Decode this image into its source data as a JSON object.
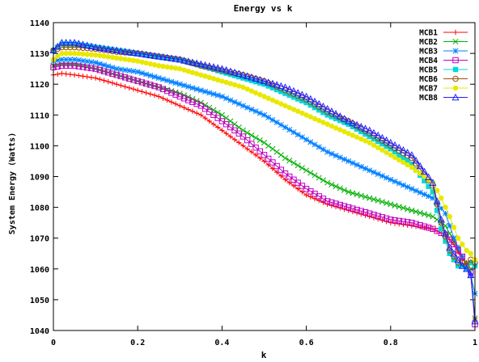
{
  "chart_data": {
    "type": "line",
    "title": "Energy vs k",
    "xlabel": "k",
    "ylabel": "System Energy (Watts)",
    "xlim": [
      0,
      1
    ],
    "ylim": [
      1040,
      1140
    ],
    "x_ticks": [
      "0",
      "0.2",
      "0.4",
      "0.6",
      "0.8",
      "1"
    ],
    "y_ticks": [
      "1040",
      "1050",
      "1060",
      "1070",
      "1080",
      "1090",
      "1100",
      "1110",
      "1120",
      "1130",
      "1140"
    ],
    "grid": false,
    "legend_position": "top-right",
    "series": [
      {
        "name": "MCB1",
        "color": "#ff0000",
        "marker": "plus",
        "x": [
          0,
          0.02,
          0.05,
          0.1,
          0.15,
          0.2,
          0.25,
          0.3,
          0.35,
          0.4,
          0.45,
          0.5,
          0.55,
          0.6,
          0.65,
          0.7,
          0.75,
          0.8,
          0.85,
          0.9,
          0.93,
          0.95,
          0.97,
          0.98,
          0.99,
          1.0
        ],
        "y": [
          1123,
          1123.5,
          1123,
          1122,
          1120,
          1118,
          1116,
          1113,
          1110,
          1105,
          1100,
          1095,
          1089,
          1084,
          1081,
          1079,
          1077,
          1075,
          1074,
          1073,
          1071,
          1068,
          1063,
          1062,
          1058,
          1044
        ]
      },
      {
        "name": "MCB2",
        "color": "#00b000",
        "marker": "cross",
        "x": [
          0,
          0.02,
          0.05,
          0.1,
          0.15,
          0.2,
          0.25,
          0.3,
          0.35,
          0.4,
          0.45,
          0.5,
          0.55,
          0.6,
          0.65,
          0.7,
          0.75,
          0.8,
          0.85,
          0.9,
          0.93,
          0.95,
          0.97,
          0.98,
          0.99,
          1.0
        ],
        "y": [
          1126,
          1126.5,
          1126.5,
          1125,
          1123,
          1121,
          1119,
          1117,
          1114,
          1110,
          1105,
          1101,
          1096,
          1092,
          1088,
          1085,
          1083,
          1081,
          1079,
          1077,
          1074,
          1069,
          1064,
          1062,
          1060,
          1044
        ]
      },
      {
        "name": "MCB3",
        "color": "#0080ff",
        "marker": "star",
        "x": [
          0,
          0.02,
          0.05,
          0.1,
          0.15,
          0.2,
          0.25,
          0.3,
          0.35,
          0.4,
          0.45,
          0.5,
          0.55,
          0.6,
          0.65,
          0.7,
          0.75,
          0.8,
          0.85,
          0.9,
          0.93,
          0.95,
          0.97,
          0.98,
          0.99,
          1.0
        ],
        "y": [
          1127.5,
          1128,
          1128,
          1127,
          1125,
          1124,
          1122,
          1120,
          1118,
          1116,
          1113,
          1110,
          1106,
          1102,
          1098,
          1095,
          1092,
          1089,
          1086,
          1083,
          1078,
          1070,
          1064,
          1061,
          1058,
          1052
        ]
      },
      {
        "name": "MCB4",
        "color": "#c000c0",
        "marker": "square",
        "x": [
          0,
          0.02,
          0.05,
          0.1,
          0.15,
          0.2,
          0.25,
          0.3,
          0.35,
          0.4,
          0.45,
          0.5,
          0.55,
          0.6,
          0.65,
          0.7,
          0.75,
          0.8,
          0.85,
          0.9,
          0.93,
          0.95,
          0.97,
          0.98,
          0.99,
          1.0
        ],
        "y": [
          1125.5,
          1126,
          1126,
          1125,
          1123,
          1121,
          1119,
          1116,
          1113,
          1108,
          1103,
          1097,
          1091,
          1086,
          1082,
          1080,
          1078,
          1076,
          1075,
          1073,
          1071,
          1068,
          1064,
          1061,
          1059,
          1042
        ]
      },
      {
        "name": "MCB5",
        "color": "#00d8d8",
        "marker": "filled-square",
        "x": [
          0,
          0.02,
          0.05,
          0.1,
          0.15,
          0.2,
          0.25,
          0.3,
          0.35,
          0.4,
          0.45,
          0.5,
          0.55,
          0.6,
          0.65,
          0.7,
          0.75,
          0.8,
          0.85,
          0.9,
          0.92,
          0.94,
          0.96,
          0.97,
          0.98,
          0.99,
          1.0
        ],
        "y": [
          1131,
          1133,
          1133,
          1132,
          1131,
          1130,
          1129,
          1128,
          1126,
          1124,
          1122,
          1120,
          1117,
          1114,
          1110,
          1107,
          1103,
          1099,
          1094,
          1085,
          1073,
          1065,
          1061,
          1061,
          1060,
          1062,
          1061
        ]
      },
      {
        "name": "MCB6",
        "color": "#a05000",
        "marker": "circle",
        "x": [
          0,
          0.02,
          0.05,
          0.1,
          0.15,
          0.2,
          0.25,
          0.3,
          0.35,
          0.4,
          0.45,
          0.5,
          0.55,
          0.6,
          0.65,
          0.7,
          0.75,
          0.8,
          0.85,
          0.9,
          0.92,
          0.94,
          0.96,
          0.97,
          0.98,
          0.99,
          1.0
        ],
        "y": [
          1131,
          1132,
          1132,
          1131.5,
          1130.5,
          1130,
          1129,
          1128,
          1126,
          1124.5,
          1123,
          1121,
          1118,
          1115,
          1111,
          1108,
          1104,
          1100,
          1096,
          1087,
          1075,
          1066,
          1062,
          1062,
          1061,
          1063,
          1062
        ]
      },
      {
        "name": "MCB7",
        "color": "#e8e800",
        "marker": "filled-circle",
        "x": [
          0,
          0.02,
          0.05,
          0.1,
          0.15,
          0.2,
          0.25,
          0.3,
          0.35,
          0.4,
          0.45,
          0.5,
          0.55,
          0.6,
          0.65,
          0.7,
          0.75,
          0.8,
          0.85,
          0.9,
          0.92,
          0.94,
          0.96,
          0.97,
          0.98,
          0.99,
          1.0
        ],
        "y": [
          1128,
          1130,
          1130,
          1129.5,
          1128.5,
          1127.5,
          1126,
          1125,
          1123,
          1121,
          1119,
          1116,
          1113,
          1110,
          1107,
          1104,
          1101,
          1097,
          1093,
          1088,
          1083,
          1077,
          1070,
          1068,
          1066,
          1065,
          1063
        ]
      },
      {
        "name": "MCB8",
        "color": "#2020ff",
        "marker": "triangle",
        "x": [
          0,
          0.02,
          0.05,
          0.1,
          0.15,
          0.2,
          0.25,
          0.3,
          0.35,
          0.4,
          0.45,
          0.5,
          0.55,
          0.6,
          0.65,
          0.7,
          0.75,
          0.8,
          0.85,
          0.9,
          0.92,
          0.94,
          0.96,
          0.97,
          0.98,
          0.99,
          1.0
        ],
        "y": [
          1131,
          1133.5,
          1133.5,
          1132,
          1131,
          1130,
          1129,
          1128,
          1126.5,
          1125,
          1123,
          1121,
          1119,
          1116,
          1112,
          1108,
          1105,
          1101,
          1097,
          1088,
          1076,
          1067,
          1063,
          1061,
          1060,
          1058,
          1043
        ]
      }
    ]
  }
}
